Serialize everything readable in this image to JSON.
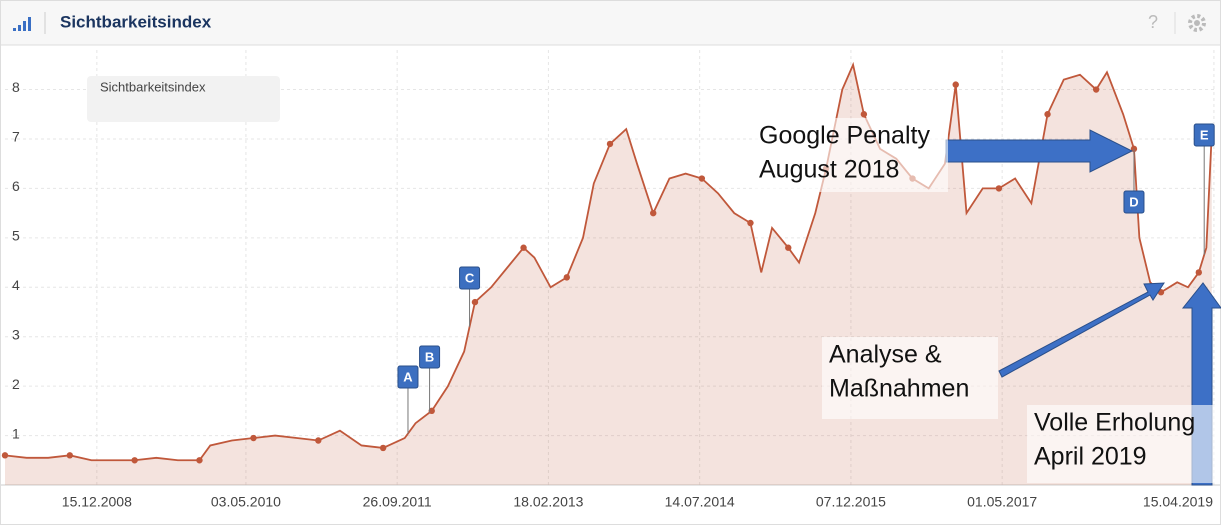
{
  "header": {
    "title": "Sichtbarkeitsindex",
    "help": "?"
  },
  "chart_data": {
    "type": "line",
    "legend": "Sichtbarkeitsindex",
    "x": [
      2008.1,
      2008.3,
      2008.5,
      2008.7,
      2008.9,
      2009.1,
      2009.3,
      2009.5,
      2009.7,
      2009.9,
      2010.0,
      2010.2,
      2010.4,
      2010.6,
      2010.8,
      2011.0,
      2011.2,
      2011.4,
      2011.6,
      2011.8,
      2011.9,
      2012.05,
      2012.2,
      2012.35,
      2012.45,
      2012.6,
      2012.75,
      2012.9,
      2013.0,
      2013.15,
      2013.3,
      2013.45,
      2013.55,
      2013.7,
      2013.85,
      2013.95,
      2014.1,
      2014.25,
      2014.4,
      2014.55,
      2014.7,
      2014.85,
      2015.0,
      2015.1,
      2015.2,
      2015.35,
      2015.45,
      2015.6,
      2015.7,
      2015.85,
      2015.95,
      2016.05,
      2016.2,
      2016.35,
      2016.5,
      2016.65,
      2016.8,
      2016.9,
      2017.0,
      2017.15,
      2017.3,
      2017.45,
      2017.6,
      2017.75,
      2017.9,
      2018.05,
      2018.2,
      2018.3,
      2018.45,
      2018.55,
      2018.6,
      2018.7,
      2018.8,
      2018.95,
      2019.05,
      2019.15,
      2019.22,
      2019.27
    ],
    "series": [
      {
        "name": "Sichtbarkeitsindex",
        "color": "#c0583b",
        "values": [
          0.6,
          0.55,
          0.55,
          0.6,
          0.5,
          0.5,
          0.5,
          0.55,
          0.5,
          0.5,
          0.8,
          0.9,
          0.95,
          1.0,
          0.95,
          0.9,
          1.1,
          0.8,
          0.75,
          0.95,
          1.25,
          1.5,
          2.0,
          2.7,
          3.7,
          4.0,
          4.4,
          4.8,
          4.6,
          4.0,
          4.2,
          5.0,
          6.1,
          6.9,
          7.2,
          6.5,
          5.5,
          6.2,
          6.3,
          6.2,
          5.9,
          5.5,
          5.3,
          4.3,
          5.2,
          4.8,
          4.5,
          5.5,
          6.4,
          8.0,
          8.5,
          7.5,
          6.8,
          6.6,
          6.2,
          6.0,
          6.5,
          8.1,
          5.5,
          6.0,
          6.0,
          6.2,
          5.7,
          7.5,
          8.2,
          8.3,
          8.0,
          8.35,
          7.5,
          6.8,
          5.0,
          4.1,
          3.9,
          4.1,
          4.0,
          4.3,
          4.8,
          7.1
        ]
      }
    ],
    "xlim": [
      2008.1,
      2019.3
    ],
    "xticks": [
      {
        "value": 2008.95,
        "label": "15.12.2008"
      },
      {
        "value": 2010.33,
        "label": "03.05.2010"
      },
      {
        "value": 2011.73,
        "label": "26.09.2011"
      },
      {
        "value": 2013.13,
        "label": "18.02.2013"
      },
      {
        "value": 2014.53,
        "label": "14.07.2014"
      },
      {
        "value": 2015.93,
        "label": "07.12.2015"
      },
      {
        "value": 2017.33,
        "label": "01.05.2017"
      },
      {
        "value": 2019.29,
        "label": "15.04.2019"
      }
    ],
    "ylim": [
      0,
      8.8
    ],
    "yticks": [
      1,
      2,
      3,
      4,
      5,
      6,
      7,
      8
    ],
    "grid": true,
    "flags": [
      {
        "label": "A",
        "x": 2011.83
      },
      {
        "label": "B",
        "x": 2012.03
      },
      {
        "label": "C",
        "x": 2012.4
      },
      {
        "label": "D",
        "x": 2018.55
      },
      {
        "label": "E",
        "x": 2019.2
      }
    ],
    "annotations": [
      [
        "Google Penalty",
        "August 2018"
      ],
      [
        "Analyse &",
        "Maßnahmen"
      ],
      [
        "Volle Erholung",
        "April 2019"
      ]
    ]
  }
}
